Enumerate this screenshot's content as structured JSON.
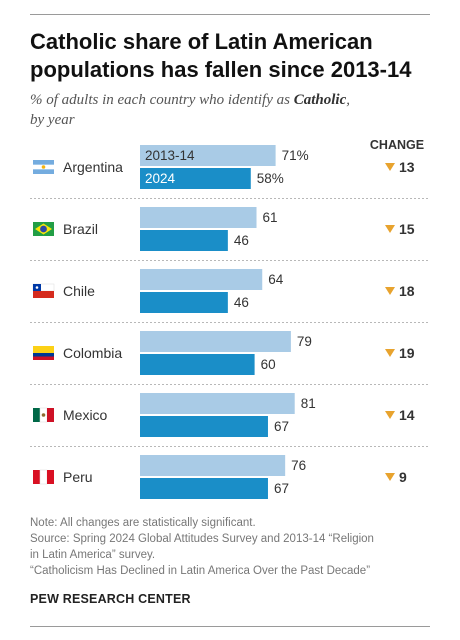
{
  "header": {
    "title_line1": "Catholic share of Latin American",
    "title_line2": "populations has fallen since 2013-14",
    "subtitle_pre": "% of adults in each country who identify as ",
    "subtitle_em": "Catholic",
    "subtitle_post": ",",
    "subtitle_line2": "by year"
  },
  "chart_data": {
    "type": "bar",
    "orientation": "horizontal",
    "categories": [
      "Argentina",
      "Brazil",
      "Chile",
      "Colombia",
      "Mexico",
      "Peru"
    ],
    "series": [
      {
        "name": "2013-14",
        "values": [
          71,
          61,
          64,
          79,
          81,
          76
        ],
        "color": "#a9cbe6"
      },
      {
        "name": "2024",
        "values": [
          58,
          46,
          46,
          60,
          67,
          67
        ],
        "color": "#1a8ec8"
      }
    ],
    "value_labels": {
      "2013-14": [
        "71%",
        "61",
        "64",
        "79",
        "81",
        "76"
      ],
      "2024": [
        "58%",
        "46",
        "46",
        "60",
        "67",
        "67"
      ]
    },
    "change_header": "CHANGE",
    "change": [
      13,
      15,
      18,
      19,
      14,
      9
    ],
    "change_marker_color": "#e8a32e",
    "xlim": [
      0,
      100
    ],
    "grid": false,
    "legend": "inside-first-bars",
    "flags": {
      "Argentina": "flag-argentina",
      "Brazil": "flag-brazil",
      "Chile": "flag-chile",
      "Colombia": "flag-colombia",
      "Mexico": "flag-mexico",
      "Peru": "flag-peru"
    }
  },
  "footer": {
    "note": "Note: All changes are statistically significant.",
    "source_line1": "Source: Spring 2024 Global Attitudes Survey and 2013-14 “Religion",
    "source_line2": "in Latin America” survey.",
    "report": "“Catholicism Has Declined in Latin America Over the Past Decade”",
    "brand": "PEW RESEARCH CENTER"
  }
}
